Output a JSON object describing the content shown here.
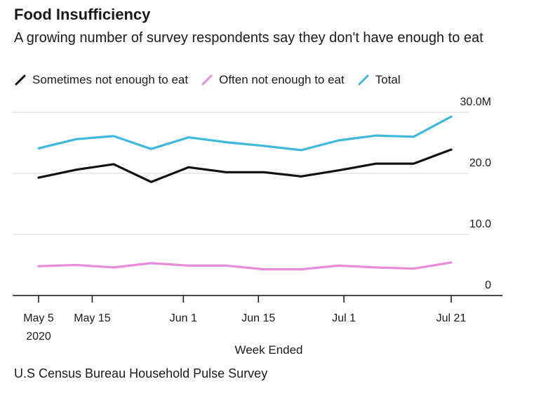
{
  "chart_data": {
    "type": "line",
    "title": "Food Insufficiency",
    "subtitle": "A growing number of survey respondents say they don't have enough to eat",
    "xlabel": "Week Ended",
    "ylabel": "",
    "source": "U.S Census Bureau Household Pulse Survey",
    "x": [
      "May 5",
      "May 12",
      "May 19",
      "May 26",
      "Jun 2",
      "Jun 9",
      "Jun 16",
      "Jun 23",
      "Jun 30",
      "Jul 7",
      "Jul 14",
      "Jul 21"
    ],
    "x_ticks": [
      {
        "label": "May 5",
        "index": 0
      },
      {
        "label": "May 15",
        "index": 1.43
      },
      {
        "label": "Jun 1",
        "index": 3.86
      },
      {
        "label": "Jun 15",
        "index": 5.86
      },
      {
        "label": "Jul 1",
        "index": 8.14
      },
      {
        "label": "Jul 21",
        "index": 11
      }
    ],
    "x_year_label": "2020",
    "y_ticks": [
      {
        "value": 0,
        "label": "0"
      },
      {
        "value": 10,
        "label": "10.0"
      },
      {
        "value": 20,
        "label": "20.0"
      },
      {
        "value": 30,
        "label": "30.0M"
      }
    ],
    "ylim": [
      0,
      30
    ],
    "grid": true,
    "legend_position": "top-left",
    "series": [
      {
        "name": "Sometimes not enough to eat",
        "color": "#111111",
        "values": [
          19.3,
          20.6,
          21.5,
          18.6,
          21.0,
          20.2,
          20.2,
          19.5,
          20.5,
          21.6,
          21.6,
          23.9
        ]
      },
      {
        "name": "Often not enough to eat",
        "color": "#e98bd8",
        "values": [
          4.8,
          5.0,
          4.6,
          5.3,
          4.9,
          4.9,
          4.3,
          4.3,
          4.9,
          4.6,
          4.4,
          5.4
        ]
      },
      {
        "name": "Total",
        "color": "#3db9de",
        "values": [
          24.1,
          25.6,
          26.1,
          24.0,
          25.9,
          25.1,
          24.5,
          23.8,
          25.4,
          26.2,
          26.0,
          29.3
        ]
      }
    ]
  }
}
